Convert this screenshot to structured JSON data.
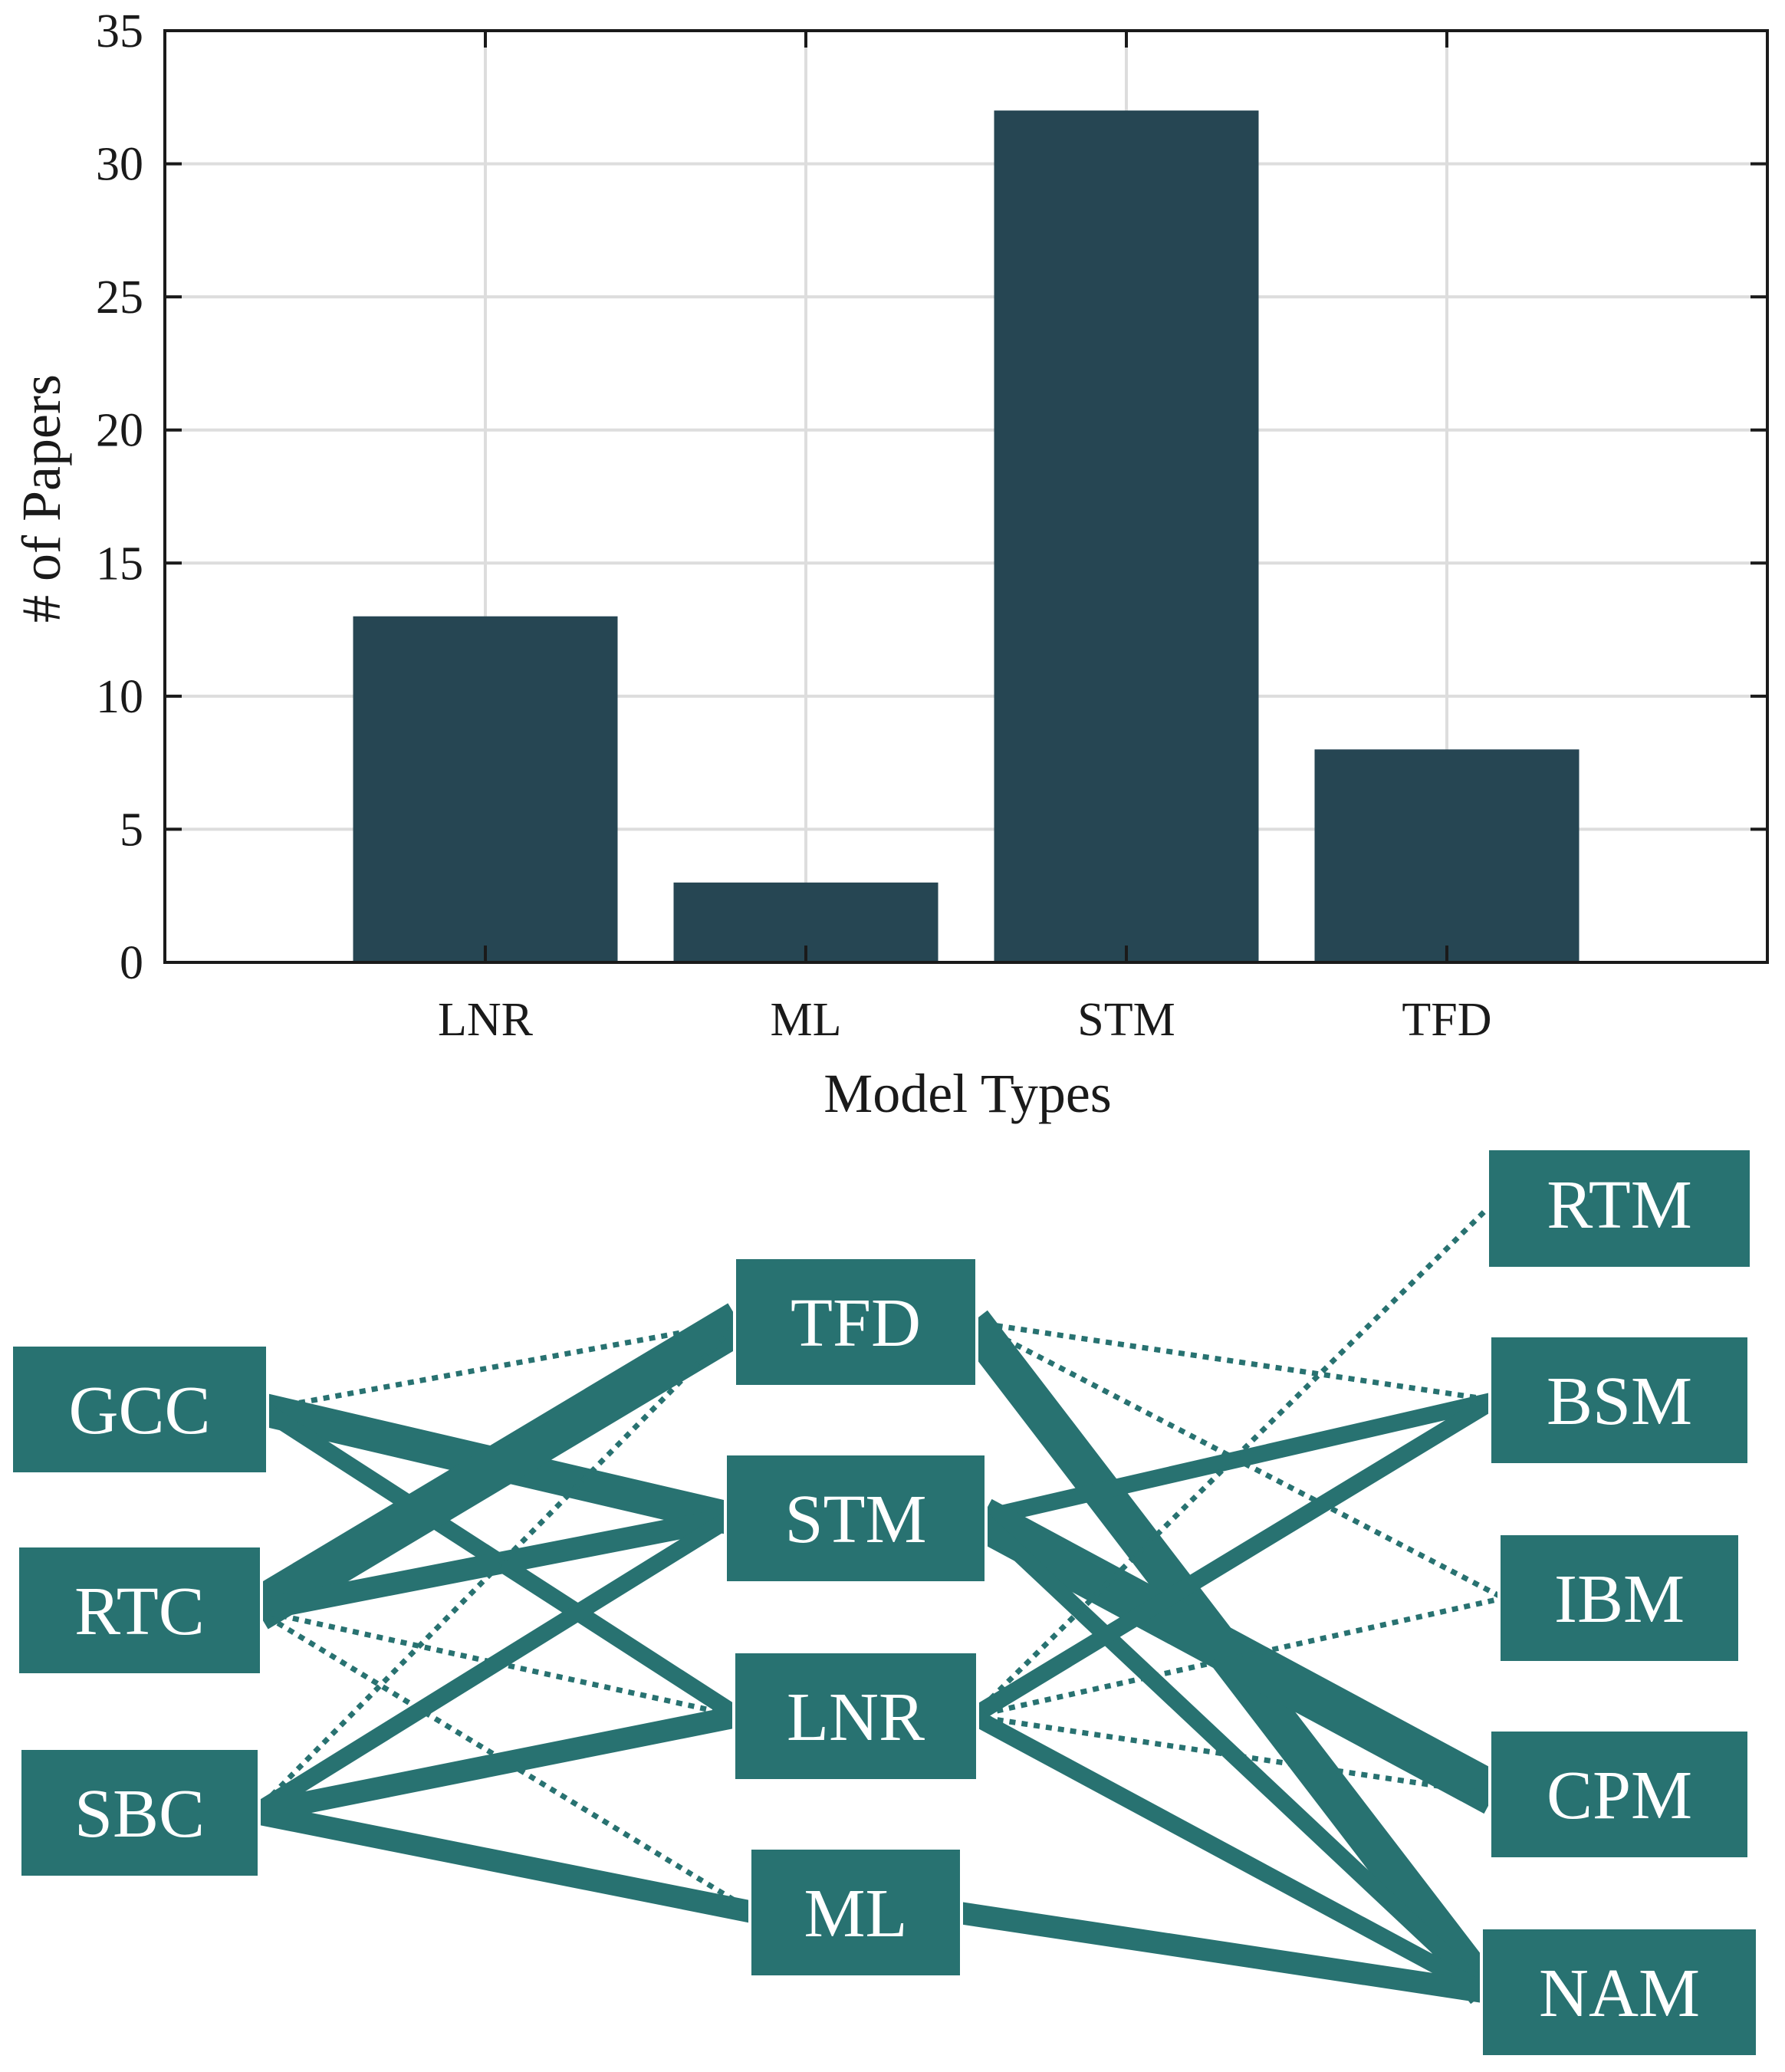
{
  "colors": {
    "bar": "#264653",
    "node": "#287271",
    "link": "#287271",
    "grid": "#dddddd",
    "axis": "#1a1a1a"
  },
  "chart_data": [
    {
      "type": "bar",
      "title": "",
      "xlabel": "Model Types",
      "ylabel": "# of Papers",
      "categories": [
        "LNR",
        "ML",
        "STM",
        "TFD"
      ],
      "values": [
        13,
        3,
        32,
        8
      ],
      "ylim": [
        0,
        35
      ],
      "yticks": [
        "0",
        "5",
        "10",
        "15",
        "20",
        "25",
        "30",
        "35"
      ],
      "grid": true,
      "legend": "none"
    },
    {
      "type": "network",
      "columns": [
        [
          "GCC",
          "RTC",
          "SBC"
        ],
        [
          "TFD",
          "STM",
          "LNR",
          "ML"
        ],
        [
          "RTM",
          "BSM",
          "IBM",
          "CPM",
          "NAM"
        ]
      ],
      "links": [
        {
          "source": "GCC",
          "target": "TFD",
          "weight": 1,
          "style": "dotted"
        },
        {
          "source": "GCC",
          "target": "STM",
          "weight": 5,
          "style": "solid"
        },
        {
          "source": "GCC",
          "target": "LNR",
          "weight": 2,
          "style": "solid"
        },
        {
          "source": "RTC",
          "target": "TFD",
          "weight": 7,
          "style": "solid"
        },
        {
          "source": "RTC",
          "target": "STM",
          "weight": 3,
          "style": "solid"
        },
        {
          "source": "RTC",
          "target": "LNR",
          "weight": 1,
          "style": "dotted"
        },
        {
          "source": "RTC",
          "target": "ML",
          "weight": 1,
          "style": "dotted"
        },
        {
          "source": "SBC",
          "target": "TFD",
          "weight": 1,
          "style": "dotted"
        },
        {
          "source": "SBC",
          "target": "STM",
          "weight": 2,
          "style": "solid"
        },
        {
          "source": "SBC",
          "target": "LNR",
          "weight": 3,
          "style": "solid"
        },
        {
          "source": "SBC",
          "target": "ML",
          "weight": 3,
          "style": "solid"
        },
        {
          "source": "TFD",
          "target": "BSM",
          "weight": 1,
          "style": "dotted"
        },
        {
          "source": "TFD",
          "target": "IBM",
          "weight": 1,
          "style": "dotted"
        },
        {
          "source": "TFD",
          "target": "NAM",
          "weight": 6,
          "style": "solid"
        },
        {
          "source": "STM",
          "target": "BSM",
          "weight": 2,
          "style": "solid"
        },
        {
          "source": "STM",
          "target": "CPM",
          "weight": 7,
          "style": "solid"
        },
        {
          "source": "STM",
          "target": "NAM",
          "weight": 2,
          "style": "solid"
        },
        {
          "source": "LNR",
          "target": "RTM",
          "weight": 1,
          "style": "dotted"
        },
        {
          "source": "LNR",
          "target": "BSM",
          "weight": 2,
          "style": "solid"
        },
        {
          "source": "LNR",
          "target": "IBM",
          "weight": 1,
          "style": "dotted"
        },
        {
          "source": "LNR",
          "target": "CPM",
          "weight": 1,
          "style": "dotted"
        },
        {
          "source": "LNR",
          "target": "NAM",
          "weight": 2,
          "style": "solid"
        },
        {
          "source": "ML",
          "target": "NAM",
          "weight": 3,
          "style": "solid"
        }
      ]
    }
  ]
}
